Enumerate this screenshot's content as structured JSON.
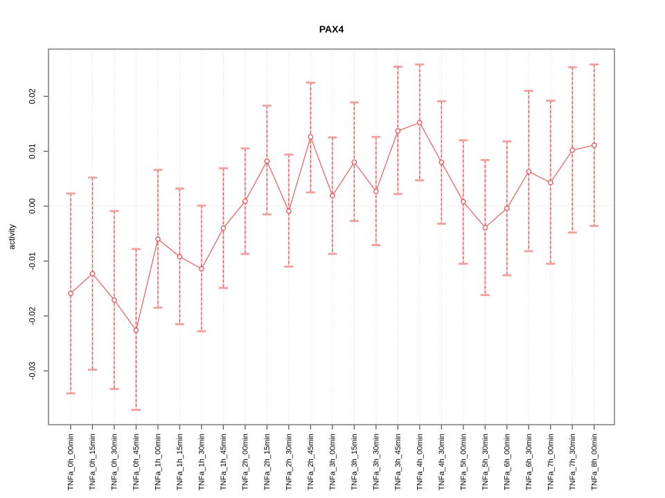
{
  "figure": {
    "title": "PAX4",
    "ylabel": "activity"
  },
  "chart_data": {
    "type": "line",
    "subtype": "points-with-error-bars",
    "title": "PAX4",
    "xlabel": "",
    "ylabel": "activity",
    "legend": "none",
    "grid": {
      "vertical_dotted": true,
      "horizontal_dotted_at": 0
    },
    "categories": [
      "TNFa_0h_00min",
      "TNFa_0h_15min",
      "TNFa_0h_30min",
      "TNFa_0h_45min",
      "TNFa_1h_00min",
      "TNFa_1h_15min",
      "TNFa_1h_30min",
      "TNFa_1h_45min",
      "TNFa_2h_00min",
      "TNFa_2h_15min",
      "TNFa_2h_30min",
      "TNFa_2h_45min",
      "TNFa_3h_00min",
      "TNFa_3h_15min",
      "TNFa_3h_30min",
      "TNFa_3h_45min",
      "TNFa_4h_00min",
      "TNFa_4h_30min",
      "TNFa_5h_00min",
      "TNFa_5h_30min",
      "TNFa_6h_00min",
      "TNFa_6h_30min",
      "TNFa_7h_00min",
      "TNFa_7h_30min",
      "TNFa_8h_00min"
    ],
    "series": [
      {
        "name": "activity",
        "values": [
          -0.0159,
          -0.0123,
          -0.0171,
          -0.0226,
          -0.006,
          -0.0092,
          -0.0114,
          -0.004,
          0.0009,
          0.0082,
          -0.0009,
          0.0126,
          0.0019,
          0.008,
          0.0027,
          0.0137,
          0.0152,
          0.008,
          0.0008,
          -0.0039,
          -0.0004,
          0.0063,
          0.0043,
          0.0102,
          0.0111
        ],
        "error_high": [
          0.0023,
          0.0052,
          -0.0009,
          -0.0078,
          0.0066,
          0.0032,
          0.0001,
          0.0069,
          0.0105,
          0.0183,
          0.0094,
          0.0225,
          0.0125,
          0.0189,
          0.0126,
          0.0254,
          0.0258,
          0.0191,
          0.012,
          0.0084,
          0.0118,
          0.021,
          0.0192,
          0.0253,
          0.0258
        ],
        "error_low": [
          -0.0341,
          -0.0298,
          -0.0333,
          -0.0371,
          -0.0185,
          -0.0215,
          -0.0228,
          -0.0149,
          -0.0087,
          -0.0015,
          -0.011,
          0.0025,
          -0.0087,
          -0.0027,
          -0.0071,
          0.0022,
          0.0047,
          -0.0032,
          -0.0105,
          -0.0162,
          -0.0126,
          -0.0082,
          -0.0105,
          -0.0048,
          -0.0036
        ]
      }
    ],
    "yticks": [
      -0.03,
      -0.02,
      -0.01,
      0.0,
      0.01,
      0.02
    ],
    "ylim": [
      -0.0398,
      0.0286
    ],
    "colors": {
      "point": "#e84747",
      "line": "#ee6565",
      "error_dash": "#e94f4f",
      "error_pale": "#f5b5b5",
      "error_cap": "#f29e9e",
      "grid": "#d9d9d9",
      "frame": "#7b7b7b",
      "text": "#000000"
    }
  }
}
